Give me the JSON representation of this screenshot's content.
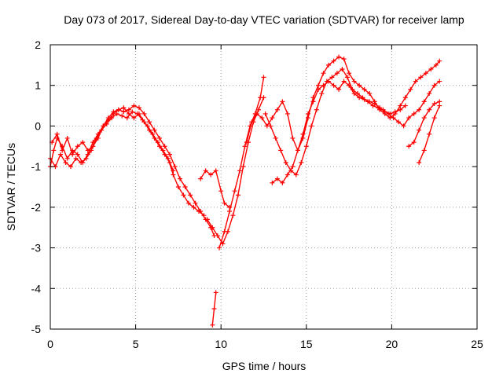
{
  "chart_data": {
    "type": "scatter",
    "title": "Day 073 of 2017, Sidereal Day-to-day VTEC variation (SDTVAR) for receiver lamp",
    "xlabel": "GPS time / hours",
    "ylabel": "SDTVAR / TECUs",
    "xlim": [
      0,
      25
    ],
    "ylim": [
      -5,
      2
    ],
    "xticks": [
      "0",
      "5",
      "10",
      "15",
      "20",
      "25"
    ],
    "yticks": [
      "2",
      "1",
      "0",
      "-1",
      "-2",
      "-3",
      "-4",
      "-5"
    ],
    "grid": true,
    "marker": "plus",
    "color": "#ff0000",
    "series": [
      {
        "x": [
          0.0,
          0.2,
          0.4,
          0.7,
          1.0,
          1.3,
          1.6,
          1.9,
          2.2,
          2.5,
          2.8,
          3.1,
          3.4,
          3.7,
          4.0,
          4.3,
          4.6,
          4.9,
          5.2,
          5.5,
          5.8,
          6.1,
          6.4,
          6.7,
          7.0,
          7.3,
          7.6,
          7.9,
          8.2,
          8.5,
          8.8,
          9.1,
          9.4,
          9.6
        ],
        "y": [
          -1.0,
          -0.6,
          -0.3,
          -0.5,
          -0.8,
          -0.6,
          -0.7,
          -0.9,
          -0.7,
          -0.4,
          -0.2,
          0.0,
          0.15,
          0.3,
          0.4,
          0.35,
          0.4,
          0.5,
          0.45,
          0.3,
          0.1,
          -0.1,
          -0.3,
          -0.5,
          -0.7,
          -1.0,
          -1.3,
          -1.5,
          -1.7,
          -1.9,
          -2.1,
          -2.3,
          -2.5,
          -2.7
        ]
      },
      {
        "x": [
          0.0,
          0.3,
          0.6,
          0.9,
          1.2,
          1.5,
          1.8,
          2.1,
          2.4,
          2.7,
          3.0,
          3.3,
          3.6,
          3.9,
          4.2,
          4.5,
          4.8,
          5.1,
          5.4,
          5.7,
          6.0,
          6.3,
          6.6,
          6.9,
          7.2,
          7.5,
          7.8,
          8.1,
          8.4,
          8.7,
          9.0
        ],
        "y": [
          -0.8,
          -1.0,
          -0.7,
          -0.9,
          -1.0,
          -0.8,
          -0.9,
          -0.8,
          -0.6,
          -0.3,
          -0.1,
          0.05,
          0.2,
          0.3,
          0.25,
          0.2,
          0.35,
          0.3,
          0.15,
          0.0,
          -0.2,
          -0.4,
          -0.6,
          -0.8,
          -1.2,
          -1.5,
          -1.7,
          -1.9,
          -2.0,
          -2.1,
          -2.2
        ]
      },
      {
        "x": [
          0.1,
          0.4,
          0.7,
          1.0,
          1.3,
          1.6,
          1.9,
          2.2,
          2.5,
          2.8,
          3.1,
          3.4,
          3.7,
          4.0,
          4.3,
          4.6,
          4.9,
          5.2,
          5.5,
          5.8,
          6.1,
          6.4,
          6.7,
          7.0,
          7.2
        ],
        "y": [
          -0.4,
          -0.2,
          -0.6,
          -0.3,
          -0.7,
          -0.5,
          -0.4,
          -0.6,
          -0.5,
          -0.3,
          0.0,
          0.2,
          0.35,
          0.4,
          0.45,
          0.3,
          0.2,
          0.3,
          0.1,
          -0.1,
          -0.3,
          -0.5,
          -0.7,
          -0.9,
          -1.1
        ]
      },
      {
        "x": [
          8.8,
          9.1,
          9.4,
          9.7,
          10.0,
          10.2,
          10.5
        ],
        "y": [
          -1.3,
          -1.1,
          -1.2,
          -1.1,
          -1.6,
          -1.9,
          -2.0
        ]
      },
      {
        "x": [
          9.2,
          9.5,
          9.8,
          10.1,
          10.4,
          10.7,
          11.0,
          11.3,
          11.6,
          11.9,
          12.2,
          12.5
        ],
        "y": [
          -2.3,
          -2.5,
          -2.7,
          -2.9,
          -2.6,
          -2.2,
          -1.7,
          -1.0,
          -0.4,
          0.1,
          0.4,
          0.7
        ]
      },
      {
        "x": [
          9.9,
          10.2,
          10.5,
          10.8,
          11.1,
          11.4,
          11.7,
          12.0,
          12.3,
          12.5
        ],
        "y": [
          -3.0,
          -2.6,
          -2.1,
          -1.6,
          -1.1,
          -0.5,
          0.0,
          0.3,
          0.7,
          1.2
        ]
      },
      {
        "x": [
          9.5,
          9.6,
          9.7
        ],
        "y": [
          -4.9,
          -4.5,
          -4.1
        ]
      },
      {
        "x": [
          11.5,
          11.8,
          12.1,
          12.4,
          12.7,
          13.0,
          13.3,
          13.6,
          13.9,
          14.2,
          14.5,
          14.8,
          15.1,
          15.4,
          15.7,
          16.0,
          16.3,
          16.6,
          16.9,
          17.2,
          17.5,
          17.8,
          18.1,
          18.4,
          18.7,
          19.0,
          19.3,
          19.6,
          19.9,
          20.2,
          20.5,
          20.8,
          21.1,
          21.4,
          21.7,
          22.0,
          22.3,
          22.6,
          22.8
        ],
        "y": [
          -0.4,
          0.1,
          0.3,
          0.2,
          0.0,
          0.2,
          0.4,
          0.6,
          0.3,
          -0.3,
          -0.6,
          -0.3,
          0.2,
          0.7,
          1.0,
          1.3,
          1.5,
          1.6,
          1.7,
          1.65,
          1.3,
          1.1,
          1.0,
          0.9,
          0.8,
          0.6,
          0.4,
          0.3,
          0.2,
          0.3,
          0.5,
          0.7,
          0.9,
          1.1,
          1.2,
          1.3,
          1.4,
          1.5,
          1.6
        ]
      },
      {
        "x": [
          12.6,
          12.9,
          13.2,
          13.5,
          13.8,
          14.1,
          14.4,
          14.7,
          15.0,
          15.3,
          15.6,
          15.9,
          16.2,
          16.5,
          16.8,
          17.1,
          17.4,
          17.7,
          18.0,
          18.3,
          18.6,
          18.9,
          19.2,
          19.5,
          19.8,
          20.1,
          20.4,
          20.7,
          21.0,
          21.3,
          21.6,
          21.9,
          22.2,
          22.5,
          22.8
        ],
        "y": [
          0.3,
          0.0,
          -0.3,
          -0.6,
          -0.9,
          -1.1,
          -1.2,
          -0.9,
          -0.5,
          0.0,
          0.4,
          0.8,
          1.1,
          1.2,
          1.3,
          1.4,
          1.2,
          0.9,
          0.8,
          0.7,
          0.6,
          0.5,
          0.45,
          0.4,
          0.3,
          0.2,
          0.1,
          0.0,
          0.2,
          0.3,
          0.4,
          0.6,
          0.8,
          1.0,
          1.1
        ]
      },
      {
        "x": [
          13.0,
          13.3,
          13.6,
          13.9,
          14.2,
          14.5,
          14.8,
          15.1,
          15.4,
          15.7,
          16.0,
          16.3,
          16.6,
          16.9,
          17.2,
          17.5,
          17.8,
          18.1,
          18.4,
          18.7,
          19.0,
          19.3,
          19.6,
          19.9,
          20.2,
          20.5,
          20.8
        ],
        "y": [
          -1.4,
          -1.3,
          -1.4,
          -1.2,
          -1.0,
          -0.6,
          -0.2,
          0.3,
          0.6,
          0.9,
          1.0,
          1.1,
          1.0,
          0.9,
          1.1,
          1.0,
          0.8,
          0.7,
          0.65,
          0.6,
          0.55,
          0.45,
          0.35,
          0.3,
          0.35,
          0.4,
          0.5
        ]
      },
      {
        "x": [
          21.0,
          21.3,
          21.6,
          21.9,
          22.2,
          22.5,
          22.8
        ],
        "y": [
          -0.5,
          -0.4,
          -0.1,
          0.2,
          0.4,
          0.55,
          0.6
        ]
      },
      {
        "x": [
          21.6,
          21.9,
          22.2,
          22.5,
          22.8
        ],
        "y": [
          -0.9,
          -0.6,
          -0.2,
          0.2,
          0.5
        ]
      }
    ]
  }
}
